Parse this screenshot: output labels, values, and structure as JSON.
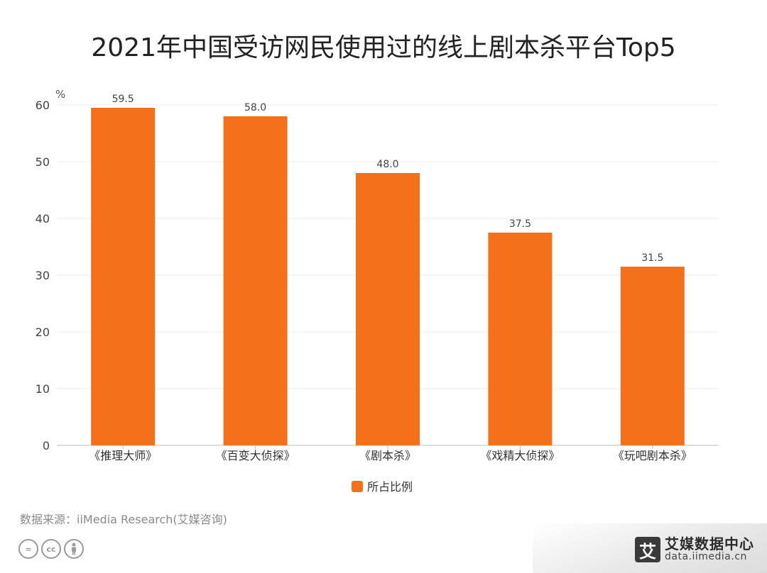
{
  "chart_data": {
    "type": "bar",
    "title": "2021年中国受访网民使用过的线上剧本杀平台Top5",
    "categories": [
      "《推理大师》",
      "《百变大侦探》",
      "《剧本杀》",
      "《戏精大侦探》",
      "《玩吧剧本杀》"
    ],
    "series": [
      {
        "name": "所占比例",
        "values": [
          59.5,
          58.0,
          48.0,
          37.5,
          31.5
        ],
        "color": "#f5701a"
      }
    ],
    "value_labels": [
      "59.5",
      "58.0",
      "48.0",
      "37.5",
      "31.5"
    ],
    "ylabel": "%",
    "xlabel": "",
    "ylim": [
      0,
      60
    ],
    "yticks": [
      0,
      10,
      20,
      30,
      40,
      50,
      60
    ],
    "grid": true,
    "legend": "bottom-center"
  },
  "source": "数据来源：iiMedia Research(艾媒咨询)",
  "license_icons": [
    "equals-icon",
    "cc-icon",
    "person-icon"
  ],
  "brand": {
    "logo_char": "艾",
    "name": "艾媒数据中心",
    "url": "data.iimedia.cn"
  }
}
